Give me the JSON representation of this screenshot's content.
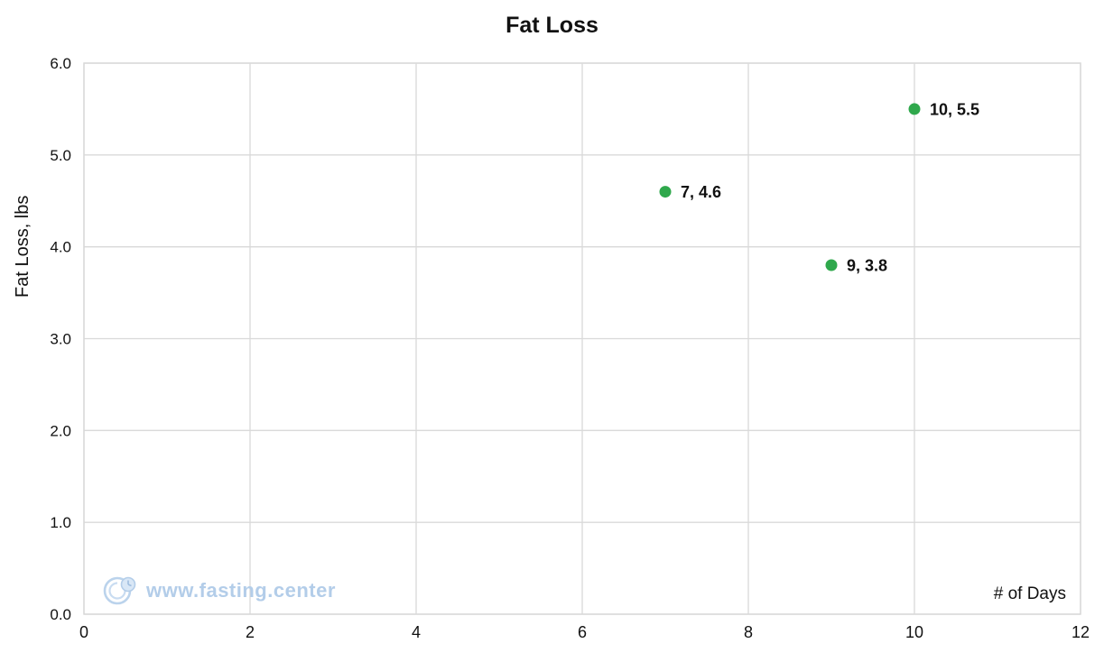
{
  "chart_data": {
    "type": "scatter",
    "title": "Fat Loss",
    "xlabel": "# of Days",
    "ylabel": "Fat Loss, lbs",
    "xlim": [
      0,
      12
    ],
    "ylim": [
      0,
      6
    ],
    "xticks": [
      "0",
      "2",
      "4",
      "6",
      "8",
      "10",
      "12"
    ],
    "yticks": [
      "0.0",
      "1.0",
      "2.0",
      "3.0",
      "4.0",
      "5.0",
      "6.0"
    ],
    "grid": true,
    "legend": "none",
    "points": [
      {
        "x": 7,
        "y": 4.6,
        "label": "7, 4.6"
      },
      {
        "x": 9,
        "y": 3.8,
        "label": "9, 3.8"
      },
      {
        "x": 10,
        "y": 5.5,
        "label": "10, 5.5"
      }
    ],
    "point_color": "#2FA84C",
    "grid_color": "#D9D9D9",
    "text_color": "#111111"
  },
  "watermark": {
    "text": "www.fasting.center",
    "color": "#B3CDE9",
    "icon": "fasting-clock-logo"
  }
}
